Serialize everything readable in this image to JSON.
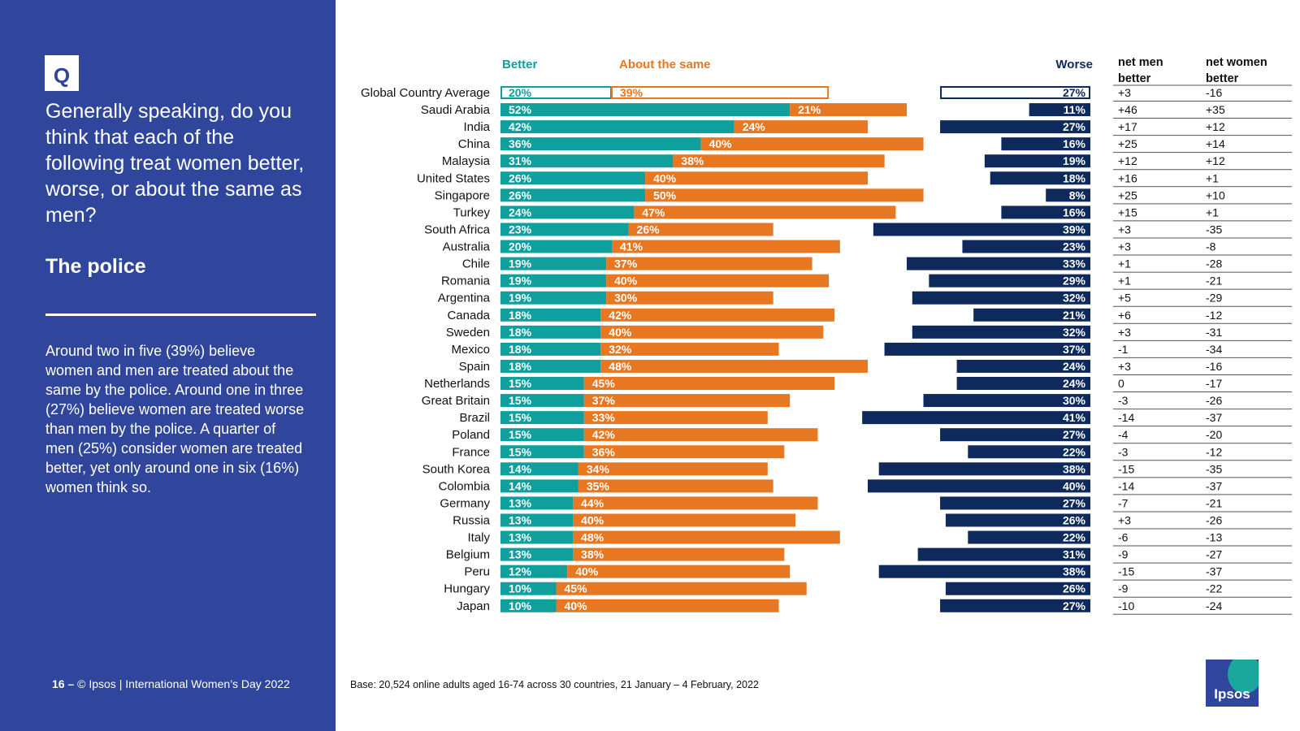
{
  "sidebar": {
    "badge": "Q",
    "question": "Generally speaking, do you think that each of the following treat women better, worse, or about the same as men?",
    "topic": "The police",
    "summary": "Around two in five (39%) believe women and men are treated about the same by the police. Around one in three (27%) believe women are treated worse than men by the police. A quarter of men (25%) consider women are treated better, yet only around one in six (16%) women think so.",
    "page_number": "16 –",
    "footer": "© Ipsos | International Women’s Day 2022"
  },
  "base_note": "Base: 20,524 online adults aged 16-74 across 30 countries, 21 January – 4 February, 2022",
  "logo_text": "Ipsos",
  "colors": {
    "better": "#0f9f9c",
    "same": "#e87722",
    "worse": "#0e2a5c",
    "sidebar": "#2f469c"
  },
  "chart_data": {
    "type": "bar",
    "legend": {
      "better": "Better",
      "same": "About the same",
      "worse": "Worse"
    },
    "columns": {
      "net_men": "net men better",
      "net_women": "net women better"
    },
    "categories": [
      "Global Country Average",
      "Saudi Arabia",
      "India",
      "China",
      "Malaysia",
      "United States",
      "Singapore",
      "Turkey",
      "South Africa",
      "Australia",
      "Chile",
      "Romania",
      "Argentina",
      "Canada",
      "Sweden",
      "Mexico",
      "Spain",
      "Netherlands",
      "Great Britain",
      "Brazil",
      "Poland",
      "France",
      "South Korea",
      "Colombia",
      "Germany",
      "Russia",
      "Italy",
      "Belgium",
      "Peru",
      "Hungary",
      "Japan"
    ],
    "series": [
      {
        "name": "Better",
        "values": [
          20,
          52,
          42,
          36,
          31,
          26,
          26,
          24,
          23,
          20,
          19,
          19,
          19,
          18,
          18,
          18,
          18,
          15,
          15,
          15,
          15,
          15,
          14,
          14,
          13,
          13,
          13,
          13,
          12,
          10,
          10
        ]
      },
      {
        "name": "About the same",
        "values": [
          39,
          21,
          24,
          40,
          38,
          40,
          50,
          47,
          26,
          41,
          37,
          40,
          30,
          42,
          40,
          32,
          48,
          45,
          37,
          33,
          42,
          36,
          34,
          35,
          44,
          40,
          48,
          38,
          40,
          45,
          40
        ]
      },
      {
        "name": "Worse",
        "values": [
          27,
          11,
          27,
          16,
          19,
          18,
          8,
          16,
          39,
          23,
          33,
          29,
          32,
          21,
          32,
          37,
          24,
          24,
          30,
          41,
          27,
          22,
          38,
          40,
          27,
          26,
          22,
          31,
          38,
          26,
          27
        ]
      }
    ],
    "net_men_better": [
      "+3",
      "+46",
      "+17",
      "+25",
      "+12",
      "+16",
      "+25",
      "+15",
      "+3",
      "+3",
      "+1",
      "+1",
      "+5",
      "+6",
      "+3",
      "-1",
      "+3",
      "0",
      "-3",
      "-14",
      "-4",
      "-3",
      "-15",
      "-14",
      "-7",
      "+3",
      "-6",
      "-9",
      "-15",
      "-9",
      "-10"
    ],
    "net_women_better": [
      "-16",
      "+35",
      "+12",
      "+14",
      "+12",
      "+1",
      "+10",
      "+1",
      "-35",
      "-8",
      "-28",
      "-21",
      "-29",
      "-12",
      "-31",
      "-34",
      "-16",
      "-17",
      "-26",
      "-37",
      "-20",
      "-12",
      "-35",
      "-37",
      "-21",
      "-26",
      "-13",
      "-27",
      "-37",
      "-22",
      "-24"
    ],
    "value_suffix": "%",
    "highlighted_row": "Global Country Average"
  }
}
